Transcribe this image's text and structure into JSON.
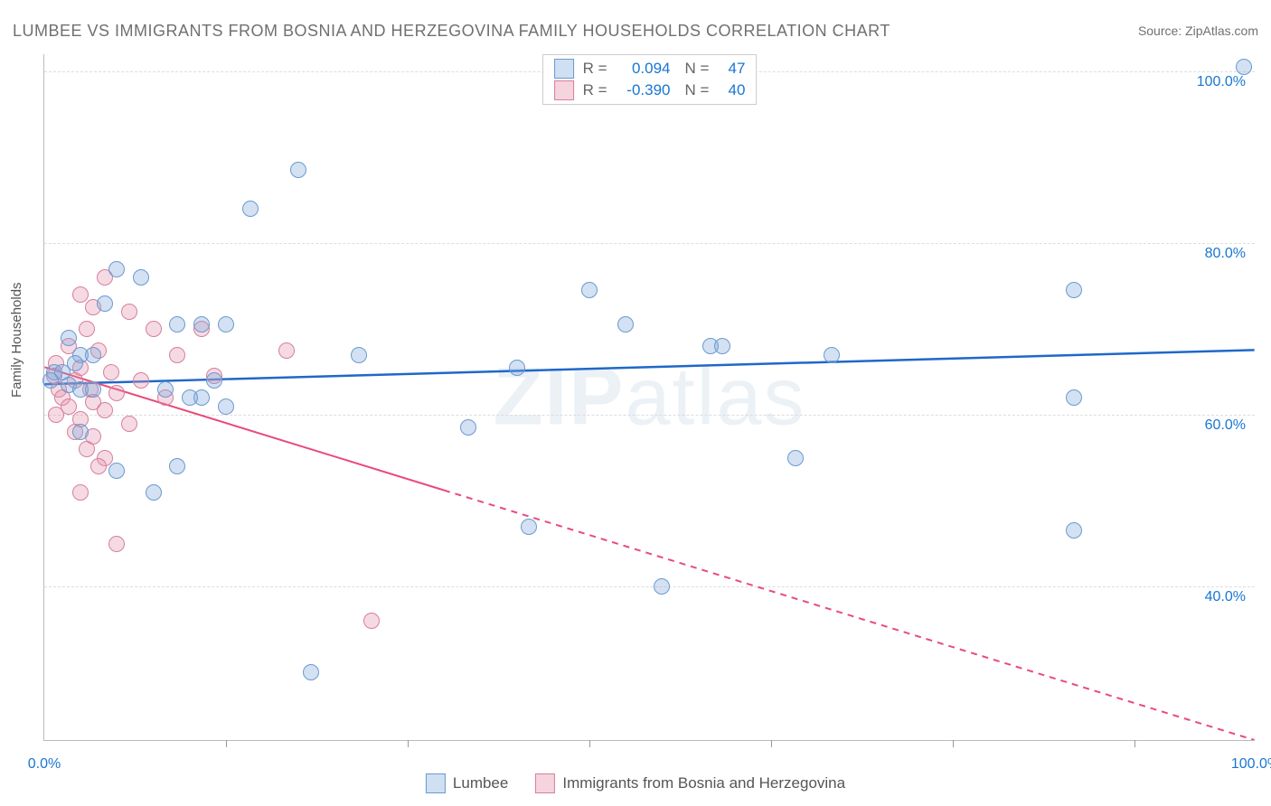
{
  "title": "LUMBEE VS IMMIGRANTS FROM BOSNIA AND HERZEGOVINA FAMILY HOUSEHOLDS CORRELATION CHART",
  "source": "Source: ZipAtlas.com",
  "watermark": "ZIPatlas",
  "chart": {
    "type": "scatter",
    "ylabel": "Family Households",
    "background_color": "#ffffff",
    "grid_color": "#dddddd",
    "axis_color": "#bbbbbb",
    "tick_font_color": "#1976d2",
    "xlim": [
      0,
      100
    ],
    "ylim": [
      22,
      102
    ],
    "ytick_values": [
      40,
      60,
      80,
      100
    ],
    "ytick_labels": [
      "40.0%",
      "60.0%",
      "80.0%",
      "100.0%"
    ],
    "xtick_positions": [
      15,
      30,
      45,
      60,
      75,
      90
    ],
    "xtick_labels": {
      "left": "0.0%",
      "right": "100.0%"
    },
    "point_radius": 9,
    "point_stroke_width": 1.5,
    "series": [
      {
        "name": "Lumbee",
        "fill_color": "rgba(130, 170, 220, 0.35)",
        "stroke_color": "#6a9ad0",
        "legend_fill": "#cfe0f3",
        "legend_stroke": "#6a9ad0",
        "correlation_R": "0.094",
        "correlation_N": "47",
        "trend": {
          "x1": 0,
          "y1": 63.5,
          "x2": 100,
          "y2": 67.5,
          "color": "#1f68c9",
          "width": 2.5,
          "dash_from_x": null
        },
        "points": [
          [
            99,
            100.5
          ],
          [
            21,
            88.5
          ],
          [
            17,
            84
          ],
          [
            6,
            77
          ],
          [
            8,
            76
          ],
          [
            5,
            73
          ],
          [
            45,
            74.5
          ],
          [
            85,
            74.5
          ],
          [
            11,
            70.5
          ],
          [
            13,
            70.5
          ],
          [
            15,
            70.5
          ],
          [
            48,
            70.5
          ],
          [
            2,
            69
          ],
          [
            55,
            68
          ],
          [
            56,
            68
          ],
          [
            3,
            67
          ],
          [
            4,
            67
          ],
          [
            2.5,
            66
          ],
          [
            39,
            65.5
          ],
          [
            65,
            67
          ],
          [
            26,
            67
          ],
          [
            0.8,
            65
          ],
          [
            1.5,
            65
          ],
          [
            14,
            64
          ],
          [
            0.5,
            64
          ],
          [
            2,
            63.5
          ],
          [
            3,
            63
          ],
          [
            4,
            63
          ],
          [
            85,
            62
          ],
          [
            10,
            63
          ],
          [
            13,
            62
          ],
          [
            12,
            62
          ],
          [
            15,
            61
          ],
          [
            35,
            58.5
          ],
          [
            62,
            55
          ],
          [
            3,
            58
          ],
          [
            11,
            54
          ],
          [
            6,
            53.5
          ],
          [
            9,
            51
          ],
          [
            85,
            46.5
          ],
          [
            40,
            47
          ],
          [
            51,
            40
          ],
          [
            22,
            30
          ]
        ]
      },
      {
        "name": "Immigrants from Bosnia and Herzegovina",
        "fill_color": "rgba(230, 150, 175, 0.35)",
        "stroke_color": "#d77f9b",
        "legend_fill": "#f5d4de",
        "legend_stroke": "#d77f9b",
        "correlation_R": "-0.390",
        "correlation_N": "40",
        "trend": {
          "x1": 0,
          "y1": 65.5,
          "x2": 100,
          "y2": 22,
          "color": "#e94b7a",
          "width": 2,
          "dash_from_x": 33
        },
        "points": [
          [
            5,
            76
          ],
          [
            3,
            74
          ],
          [
            4,
            72.5
          ],
          [
            7,
            72
          ],
          [
            3.5,
            70
          ],
          [
            9,
            70
          ],
          [
            13,
            70
          ],
          [
            2,
            68
          ],
          [
            4.5,
            67.5
          ],
          [
            11,
            67
          ],
          [
            20,
            67.5
          ],
          [
            1,
            66
          ],
          [
            3,
            65.5
          ],
          [
            5.5,
            65
          ],
          [
            0.8,
            64.5
          ],
          [
            2.5,
            64
          ],
          [
            8,
            64
          ],
          [
            14,
            64.5
          ],
          [
            1.2,
            63
          ],
          [
            3.8,
            63
          ],
          [
            6,
            62.5
          ],
          [
            1.5,
            62
          ],
          [
            4,
            61.5
          ],
          [
            10,
            62
          ],
          [
            2,
            61
          ],
          [
            5,
            60.5
          ],
          [
            1,
            60
          ],
          [
            3,
            59.5
          ],
          [
            7,
            59
          ],
          [
            2.5,
            58
          ],
          [
            4,
            57.5
          ],
          [
            3.5,
            56
          ],
          [
            5,
            55
          ],
          [
            4.5,
            54
          ],
          [
            3,
            51
          ],
          [
            6,
            45
          ],
          [
            27,
            36
          ]
        ]
      }
    ]
  },
  "top_legend": {
    "rows": [
      {
        "series": 0,
        "R_label": "R =",
        "N_label": "N ="
      },
      {
        "series": 1,
        "R_label": "R =",
        "N_label": "N ="
      }
    ]
  }
}
